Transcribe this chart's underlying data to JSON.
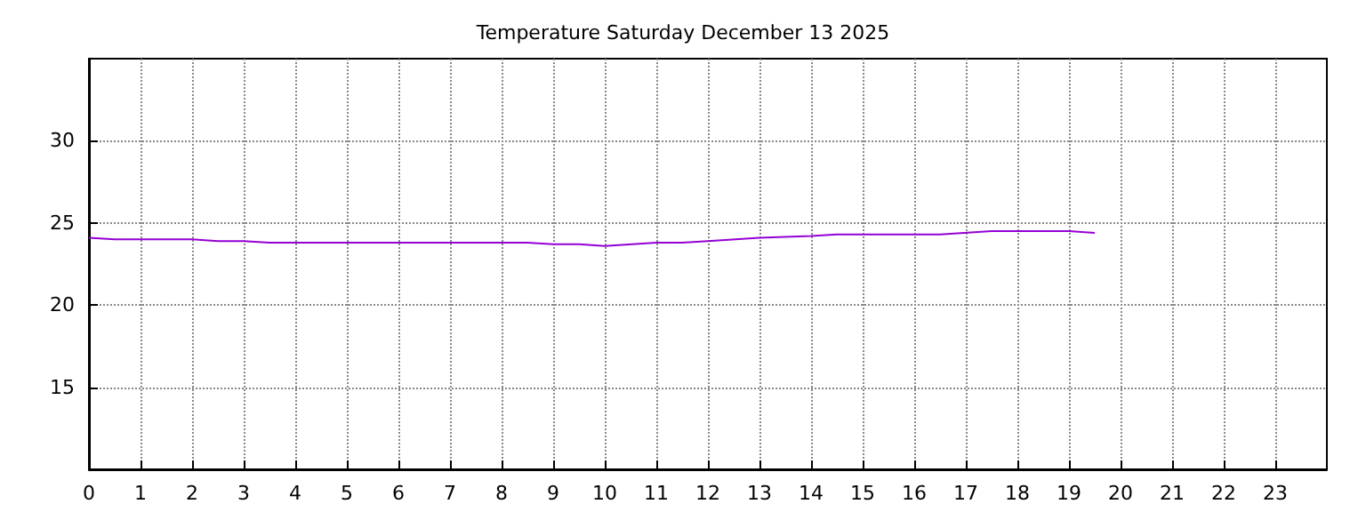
{
  "chart_data": {
    "type": "line",
    "title": "Temperature Saturday December 13 2025",
    "x": [
      0,
      0.5,
      1,
      2,
      2.5,
      3,
      3.5,
      8.5,
      9,
      9.5,
      10,
      11,
      11.5,
      12,
      13,
      14,
      14.5,
      16.5,
      17.5,
      19,
      19.5
    ],
    "series": [
      {
        "color": "#9400d3",
        "values": [
          24.1,
          24,
          24,
          24,
          23.9,
          23.9,
          23.8,
          23.8,
          23.7,
          23.7,
          23.6,
          23.8,
          23.8,
          23.9,
          24.1,
          24.2,
          24.3,
          24.3,
          24.5,
          24.5,
          24.4
        ]
      }
    ],
    "xlim": [
      0,
      24
    ],
    "xticks": [
      0,
      1,
      2,
      3,
      4,
      5,
      6,
      7,
      8,
      9,
      10,
      11,
      12,
      13,
      14,
      15,
      16,
      17,
      18,
      19,
      20,
      21,
      22,
      23
    ],
    "ylim": [
      10,
      35
    ],
    "yticks": [
      15,
      20,
      25,
      30
    ],
    "grid": true,
    "marker": "none",
    "line_style": "solid"
  }
}
